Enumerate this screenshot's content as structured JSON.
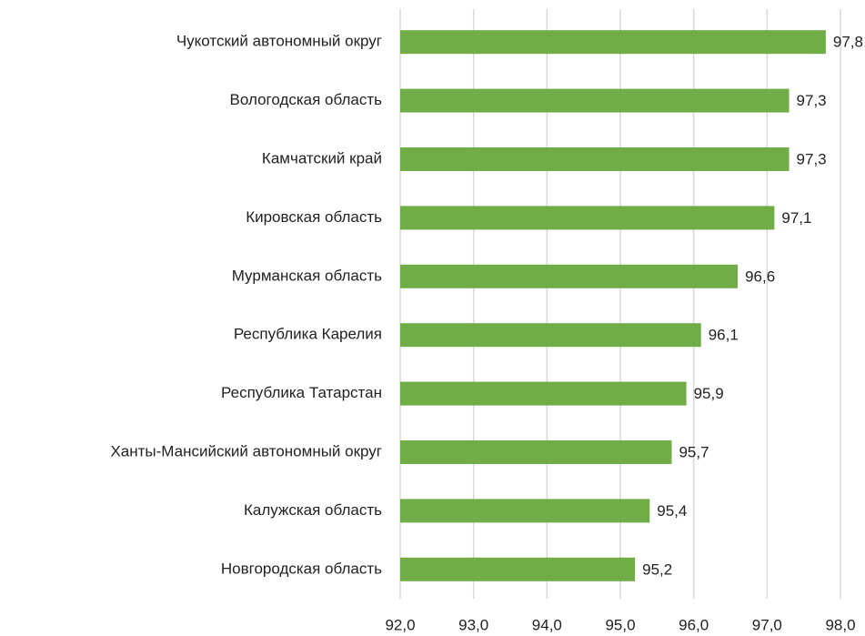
{
  "chart_data": {
    "type": "barh",
    "categories": [
      "Чукотский автономный округ",
      "Вологодская область",
      "Камчатский край",
      "Кировская область",
      "Мурманская область",
      "Республика Карелия",
      "Республика Татарстан",
      "Ханты-Мансийский автономный округ",
      "Калужская область",
      "Новгородская область"
    ],
    "values": [
      97.8,
      97.3,
      97.3,
      97.1,
      96.6,
      96.1,
      95.9,
      95.7,
      95.4,
      95.2
    ],
    "value_labels": [
      "97,8",
      "97,3",
      "97,3",
      "97,1",
      "96,6",
      "96,1",
      "95,9",
      "95,7",
      "95,4",
      "95,2"
    ],
    "color": "#70ad47",
    "xlim": [
      92,
      98
    ],
    "xticks": [
      {
        "value": 92,
        "label": "92,0"
      },
      {
        "value": 93,
        "label": "93,0"
      },
      {
        "value": 94,
        "label": "94,0"
      },
      {
        "value": 95,
        "label": "95,0"
      },
      {
        "value": 96,
        "label": "96,0"
      },
      {
        "value": 97,
        "label": "97,0"
      },
      {
        "value": 98,
        "label": "98,0"
      }
    ],
    "grid": true
  }
}
